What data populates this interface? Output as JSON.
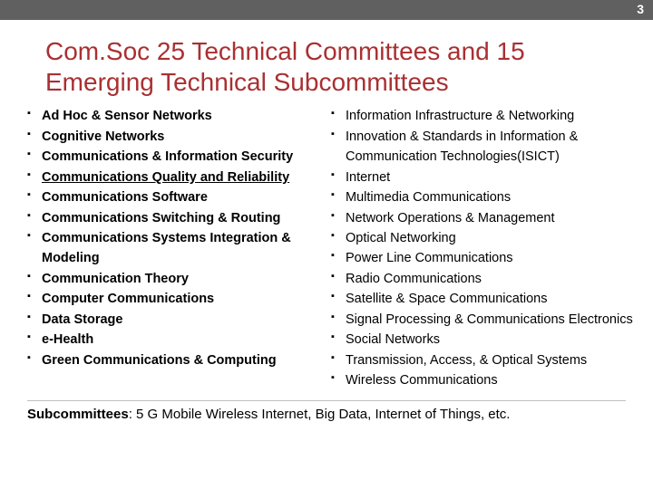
{
  "page_number": "3",
  "title": "Com.Soc 25 Technical Committees and 15 Emerging Technical Subcommittees",
  "topbar_color": "#606060",
  "title_color": "#a93032",
  "left_column": {
    "font_weight": "bold",
    "items": [
      {
        "text": "Ad Hoc & Sensor Networks",
        "link": false
      },
      {
        "text": "Cognitive Networks",
        "link": false
      },
      {
        "text": "Communications & Information Security",
        "link": false
      },
      {
        "text": "Communications Quality and Reliability",
        "link": true
      },
      {
        "text": "Communications Software",
        "link": false
      },
      {
        "text": "Communications Switching & Routing",
        "link": false
      },
      {
        "text": "Communications Systems Integration & Modeling",
        "link": false
      },
      {
        "text": "Communication Theory",
        "link": false
      },
      {
        "text": "Computer Communications",
        "link": false
      },
      {
        "text": "Data Storage",
        "link": false
      },
      {
        "text": "e-Health",
        "link": false
      },
      {
        "text": "Green Communications & Computing",
        "link": false
      }
    ]
  },
  "right_column": {
    "font_weight": "normal",
    "items": [
      {
        "text": "Information Infrastructure & Networking",
        "link": false
      },
      {
        "text": "Innovation & Standards in Information & Communication Technologies(ISICT)",
        "link": false
      },
      {
        "text": "Internet",
        "link": false
      },
      {
        "text": "Multimedia Communications",
        "link": false
      },
      {
        "text": "Network Operations & Management",
        "link": false
      },
      {
        "text": "Optical Networking",
        "link": false
      },
      {
        "text": "Power Line Communications",
        "link": false
      },
      {
        "text": "Radio Communications",
        "link": false
      },
      {
        "text": "Satellite & Space Communications",
        "link": false
      },
      {
        "text": "Signal Processing & Communications Electronics",
        "link": false
      },
      {
        "text": "Social Networks",
        "link": false
      },
      {
        "text": "Transmission, Access, & Optical Systems",
        "link": false
      },
      {
        "text": "Wireless Communications",
        "link": false
      }
    ]
  },
  "footer": {
    "lead": "Subcommittees",
    "body": ": 5 G Mobile Wireless Internet, Big Data, Internet  of Things, etc."
  }
}
